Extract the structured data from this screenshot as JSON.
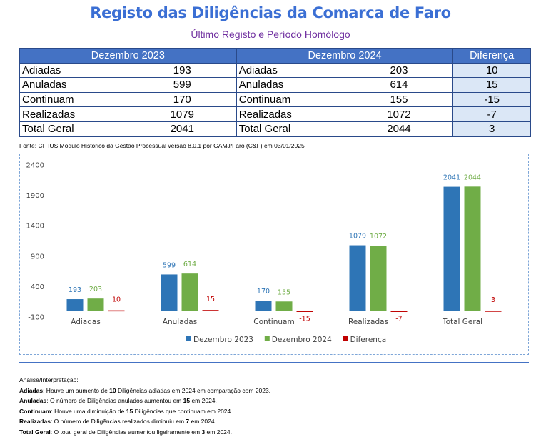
{
  "title": "Registo das Diligências da Comarca de Faro",
  "subtitle": "Último Registo e Período Homólogo",
  "table": {
    "headers": [
      "Dezembro 2023",
      "Dezembro 2024",
      "Diferença"
    ],
    "rows": [
      {
        "label_2023": "Adiadas",
        "value_2023": "193",
        "label_2024": "Adiadas",
        "value_2024": "203",
        "diff": "10"
      },
      {
        "label_2023": "Anuladas",
        "value_2023": "599",
        "label_2024": "Anuladas",
        "value_2024": "614",
        "diff": "15"
      },
      {
        "label_2023": "Continuam",
        "value_2023": "170",
        "label_2024": "Continuam",
        "value_2024": "155",
        "diff": "-15"
      },
      {
        "label_2023": "Realizadas",
        "value_2023": "1079",
        "label_2024": "Realizadas",
        "value_2024": "1072",
        "diff": "-7"
      },
      {
        "label_2023": "Total Geral",
        "value_2023": "2041",
        "label_2024": "Total Geral",
        "value_2024": "2044",
        "diff": "3"
      }
    ]
  },
  "source": "Fonte: CITIUS Módulo Histórico da Gestão Processual versão 8.0.1 por GAMJ/Faro (C&F) em 03/01/2025",
  "chart_data": {
    "type": "bar",
    "categories": [
      "Adiadas",
      "Anuladas",
      "Continuam",
      "Realizadas",
      "Total Geral"
    ],
    "series": [
      {
        "name": "Dezembro 2023",
        "values": [
          193,
          599,
          170,
          1079,
          2041
        ],
        "color": "#2e75b6"
      },
      {
        "name": "Dezembro 2024",
        "values": [
          203,
          614,
          155,
          1072,
          2044
        ],
        "color": "#70ad47"
      },
      {
        "name": "Diferença",
        "values": [
          10,
          15,
          -15,
          -7,
          3
        ],
        "color": "#c00000"
      }
    ],
    "yticks": [
      -100,
      400,
      900,
      1400,
      1900,
      2400
    ],
    "ylim": [
      -100,
      2400
    ],
    "legend": "bottom",
    "grid": false
  },
  "notes": {
    "heading": "Análise/Interpretação:",
    "items": [
      {
        "term": "Adiadas",
        "pre": ": Houve um aumento de ",
        "num": "10",
        "post": " Diligências adiadas em 2024 em comparação com 2023."
      },
      {
        "term": "Anuladas",
        "pre": ": O número de Diligências anulados aumentou em ",
        "num": "15",
        "post": " em 2024."
      },
      {
        "term": "Continuam",
        "pre": ": Houve uma diminuição de ",
        "num": "15",
        "post": " Diligências que continuam em 2024."
      },
      {
        "term": "Realizadas",
        "pre": ": O número de Diligências realizados diminuiu em ",
        "num": "7",
        "post": " em 2024."
      },
      {
        "term": "Total Geral",
        "pre": ": O total geral de Diligências aumentou ligeiramente em ",
        "num": "3",
        "post": " em 2024."
      }
    ]
  }
}
